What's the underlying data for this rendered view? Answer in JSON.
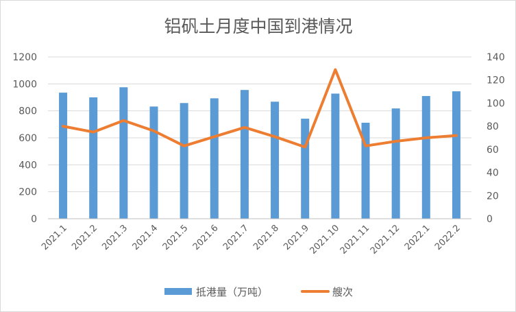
{
  "chart_data": {
    "type": "bar",
    "title": "铝矾土月度中国到港情况",
    "categories": [
      "2021.1",
      "2021.2",
      "2021.3",
      "2021.4",
      "2021.5",
      "2021.6",
      "2021.7",
      "2021.8",
      "2021.9",
      "2021.10",
      "2021.11",
      "2021.12",
      "2022.1",
      "2022.2"
    ],
    "series": [
      {
        "name": "抵港量（万吨）",
        "type": "bar",
        "axis": "left",
        "color": "#5b9bd5",
        "values": [
          935,
          900,
          975,
          832,
          858,
          893,
          955,
          868,
          742,
          928,
          712,
          818,
          910,
          945
        ]
      },
      {
        "name": "艘次",
        "type": "line",
        "axis": "right",
        "color": "#ed7d31",
        "values": [
          80,
          75,
          85,
          76,
          63,
          71,
          79,
          71,
          62,
          129,
          63,
          67,
          70,
          72
        ]
      }
    ],
    "y_left": {
      "min": 0,
      "max": 1200,
      "step": 200,
      "ticks": [
        "0",
        "200",
        "400",
        "600",
        "800",
        "1000",
        "1200"
      ]
    },
    "y_right": {
      "min": 0,
      "max": 140,
      "step": 20,
      "ticks": [
        "0",
        "20",
        "40",
        "60",
        "80",
        "100",
        "120",
        "140"
      ]
    },
    "grid": "horizontal",
    "legend_position": "bottom"
  }
}
